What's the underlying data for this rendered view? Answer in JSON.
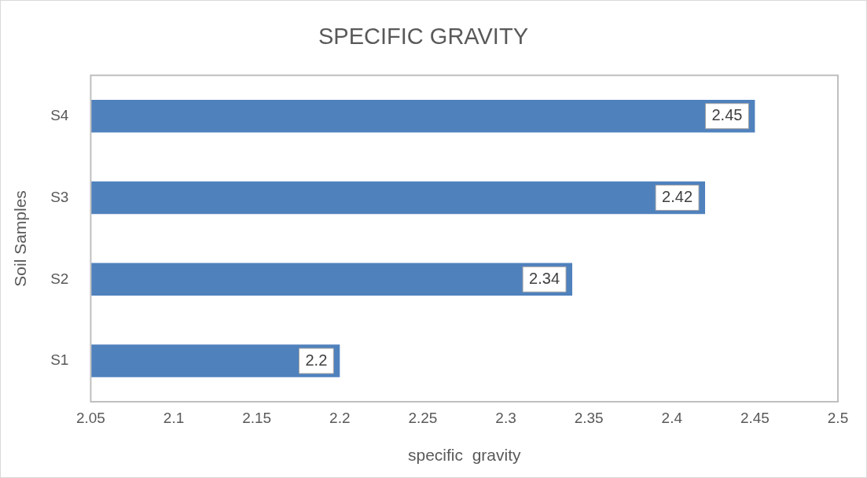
{
  "chart_data": {
    "type": "bar",
    "orientation": "horizontal",
    "title": "SPECIFIC GRAVITY",
    "xlabel": "specific  gravity",
    "ylabel": "Soil Samples",
    "categories": [
      "S4",
      "S3",
      "S2",
      "S1"
    ],
    "values": [
      2.45,
      2.42,
      2.34,
      2.2
    ],
    "color": "#4f81bd",
    "xlim": [
      2.05,
      2.5
    ],
    "xticks": [
      2.05,
      2.1,
      2.15,
      2.2,
      2.25,
      2.3,
      2.35,
      2.4,
      2.45,
      2.5
    ],
    "data_labels": true,
    "grid": false,
    "legend": false
  }
}
